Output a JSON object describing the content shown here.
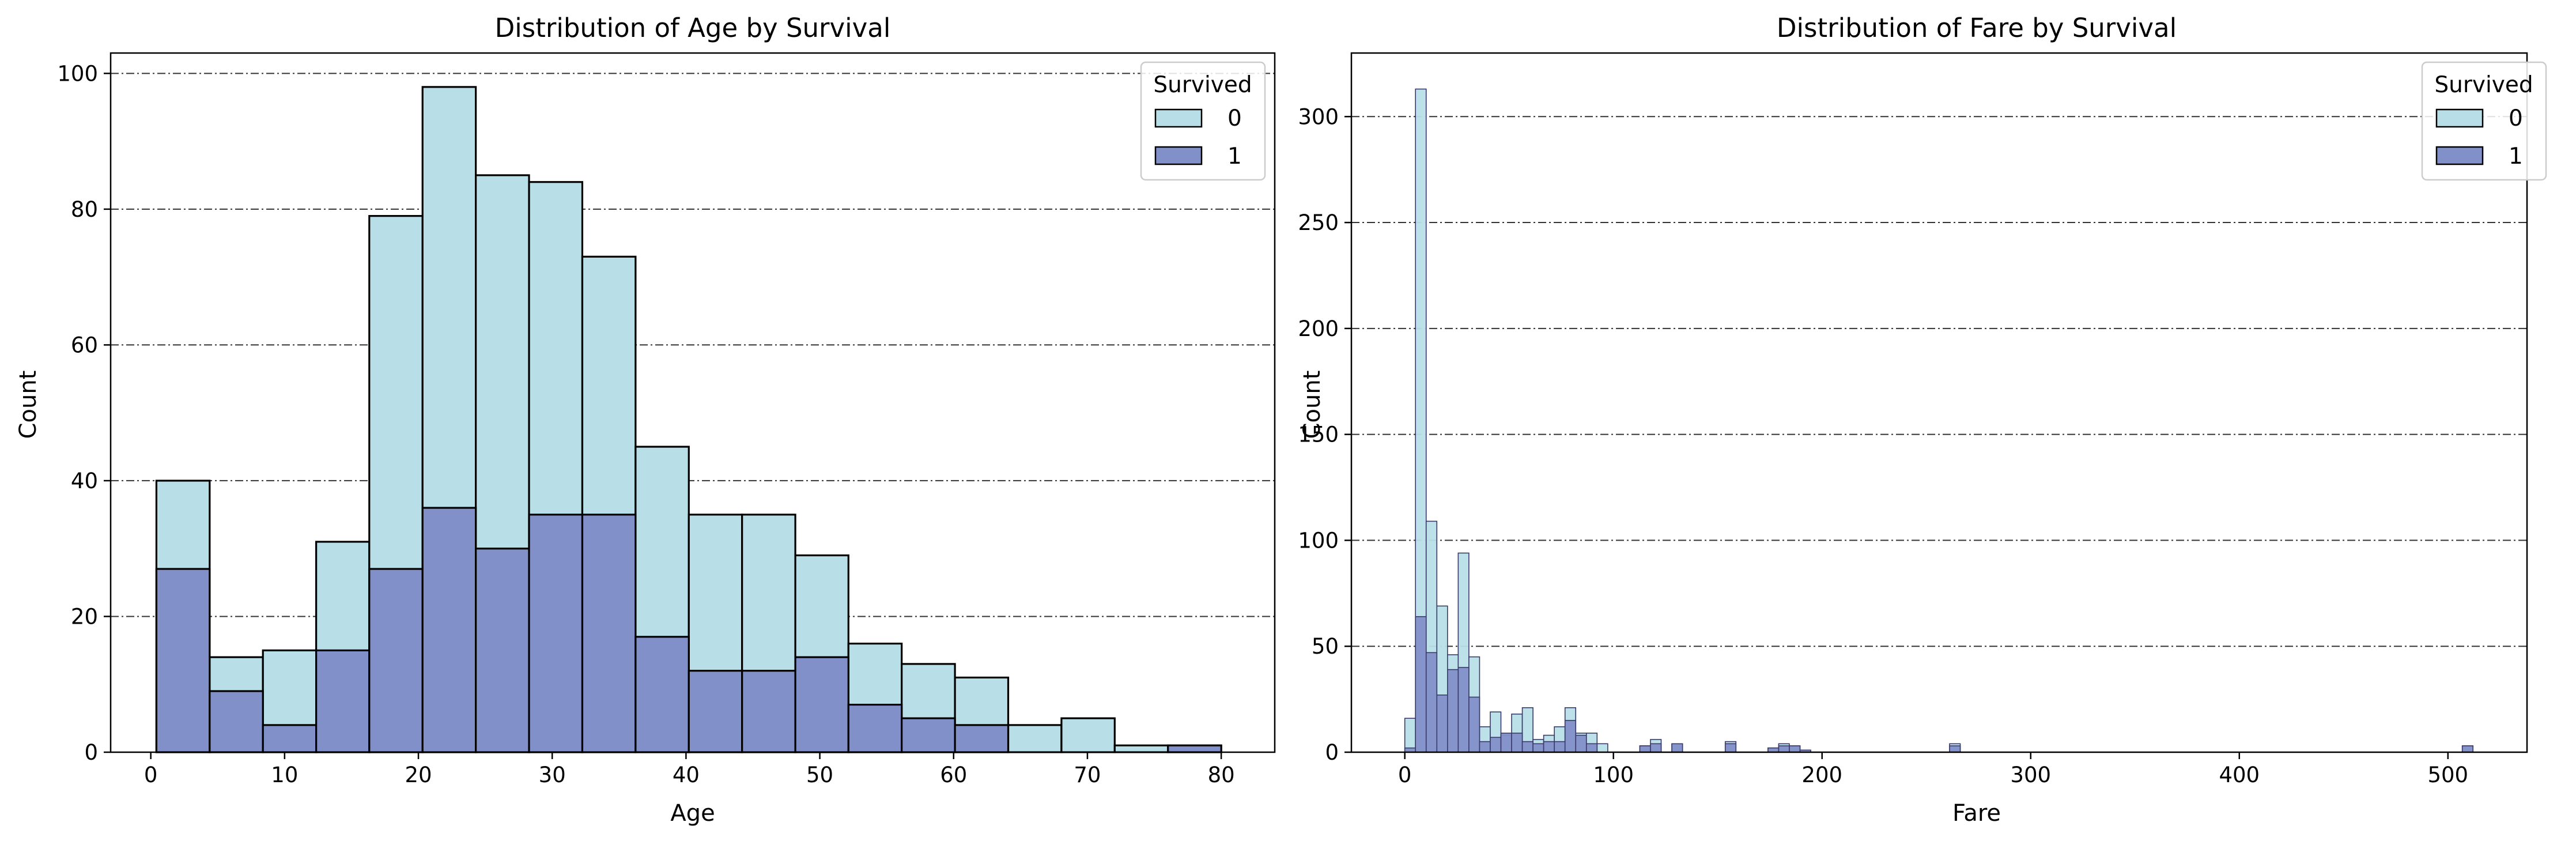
{
  "chart_data": [
    {
      "type": "bar",
      "title": "Distribution of Age by Survival",
      "xlabel": "Age",
      "ylabel": "Count",
      "xlim": [
        -3,
        84
      ],
      "ylim": [
        0,
        103
      ],
      "xticks": [
        0,
        10,
        20,
        30,
        40,
        50,
        60,
        70,
        80
      ],
      "yticks": [
        0,
        20,
        40,
        60,
        80,
        100
      ],
      "grid": "y dash-dot",
      "legend": {
        "title": "Survived",
        "position": "top-right",
        "entries": [
          "0",
          "1"
        ]
      },
      "bin_edges": [
        0.42,
        4.4,
        8.38,
        12.36,
        16.33,
        20.31,
        24.29,
        28.27,
        32.25,
        36.23,
        40.21,
        44.19,
        48.17,
        52.14,
        56.12,
        60.1,
        64.08,
        68.06,
        72.04,
        76.02,
        80.0
      ],
      "series": [
        {
          "name": "0",
          "color": "#b8dfe8",
          "values": [
            40,
            14,
            15,
            31,
            79,
            98,
            85,
            84,
            73,
            45,
            35,
            35,
            29,
            16,
            13,
            11,
            4,
            5,
            1,
            1
          ]
        },
        {
          "name": "1",
          "color": "#8290ca",
          "values": [
            27,
            9,
            4,
            15,
            27,
            36,
            30,
            35,
            35,
            17,
            12,
            12,
            14,
            7,
            5,
            4,
            0,
            0,
            0,
            1
          ]
        }
      ]
    },
    {
      "type": "bar",
      "title": "Distribution of Fare by Survival",
      "xlabel": "Fare",
      "ylabel": "Count",
      "xlim": [
        -25.6,
        537.9
      ],
      "ylim": [
        0,
        330
      ],
      "xticks": [
        0,
        100,
        200,
        300,
        400,
        500
      ],
      "yticks": [
        0,
        50,
        100,
        150,
        200,
        250,
        300
      ],
      "grid": "y dash-dot",
      "legend": {
        "title": "Survived",
        "position": "top-right",
        "entries": [
          "0",
          "1"
        ]
      },
      "bin_width": 5.12,
      "x_start": 0,
      "series": [
        {
          "name": "0",
          "color": "#b8dfe8",
          "values": [
            16,
            313,
            109,
            69,
            46,
            94,
            45,
            12,
            19,
            8,
            18,
            21,
            6,
            8,
            12,
            21,
            9,
            9,
            4,
            0,
            0,
            0,
            3,
            6,
            0,
            4,
            0,
            0,
            0,
            0,
            5,
            0,
            0,
            0,
            2,
            4,
            3,
            1,
            0,
            0,
            0,
            0,
            0,
            0,
            0,
            0,
            0,
            0,
            0,
            0,
            0,
            4,
            0,
            0,
            0,
            0,
            0,
            0,
            0,
            0,
            0,
            0,
            0,
            0,
            0,
            0,
            0,
            0,
            0,
            0,
            0,
            0,
            0,
            0,
            0,
            0,
            0,
            0,
            0,
            0,
            0,
            0,
            0,
            0,
            0,
            0,
            0,
            0,
            0,
            0,
            0,
            0,
            0,
            0,
            0,
            0,
            0,
            0,
            0,
            3
          ]
        },
        {
          "name": "1",
          "color": "#8290ca",
          "values": [
            2,
            64,
            47,
            27,
            39,
            40,
            26,
            5,
            7,
            9,
            9,
            5,
            4,
            5,
            5,
            15,
            8,
            4,
            0,
            0,
            0,
            0,
            3,
            4,
            0,
            4,
            0,
            0,
            0,
            0,
            4,
            0,
            0,
            0,
            2,
            3,
            3,
            1,
            0,
            0,
            0,
            0,
            0,
            0,
            0,
            0,
            0,
            0,
            0,
            0,
            0,
            3,
            0,
            0,
            0,
            0,
            0,
            0,
            0,
            0,
            0,
            0,
            0,
            0,
            0,
            0,
            0,
            0,
            0,
            0,
            0,
            0,
            0,
            0,
            0,
            0,
            0,
            0,
            0,
            0,
            0,
            0,
            0,
            0,
            0,
            0,
            0,
            0,
            0,
            0,
            0,
            0,
            0,
            0,
            0,
            0,
            0,
            0,
            0,
            3
          ]
        }
      ]
    }
  ]
}
